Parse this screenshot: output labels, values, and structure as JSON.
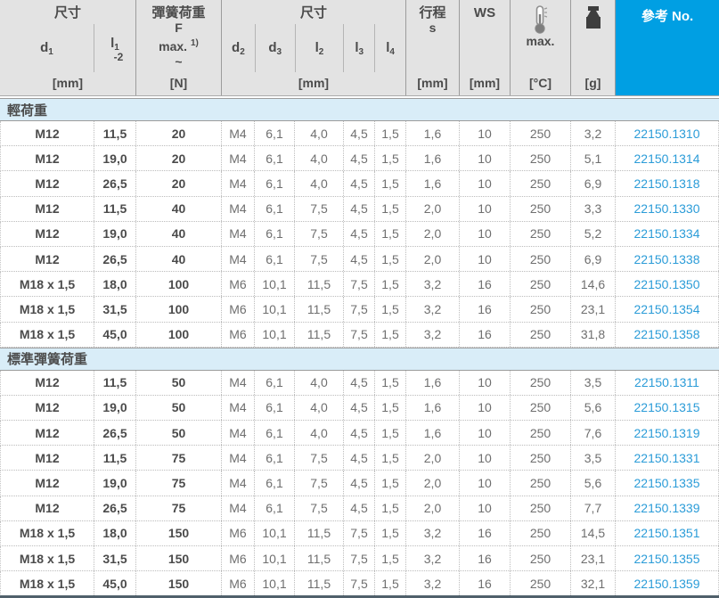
{
  "table": {
    "header": {
      "size1": {
        "title": "尺寸",
        "unit": "[mm]",
        "col_d1": {
          "base": "d",
          "sub": "1"
        },
        "col_l1": {
          "base": "l",
          "sub": "1",
          "line2": "-2"
        }
      },
      "load": {
        "title": "彈簧荷重",
        "symbol": "F",
        "max_label": "max.",
        "footnote": "1)",
        "approx": "~",
        "unit": "[N]"
      },
      "size2": {
        "title": "尺寸",
        "unit": "[mm]",
        "cols": [
          {
            "base": "d",
            "sub": "2"
          },
          {
            "base": "d",
            "sub": "3"
          },
          {
            "base": "l",
            "sub": "2"
          },
          {
            "base": "l",
            "sub": "3"
          },
          {
            "base": "l",
            "sub": "4"
          }
        ]
      },
      "stroke": {
        "line1": "行程",
        "line2": "s",
        "unit": "[mm]"
      },
      "ws": {
        "title": "WS",
        "unit": "[mm]"
      },
      "temp": {
        "icon": "thermometer-icon",
        "label": "max.",
        "unit": "[°C]"
      },
      "weight": {
        "icon": "weight-icon",
        "unit": "[g]"
      },
      "ref": {
        "title": "參考 No."
      }
    },
    "columns": [
      "d1",
      "l1-2",
      "F max",
      "d2",
      "d3",
      "l2",
      "l3",
      "l4",
      "s",
      "WS",
      "temp max",
      "weight g",
      "ref no"
    ],
    "sections": [
      {
        "title": "輕荷重",
        "rows": [
          [
            "M12",
            "11,5",
            "20",
            "M4",
            "6,1",
            "4,0",
            "4,5",
            "1,5",
            "1,6",
            "10",
            "250",
            "3,2",
            "22150.1310"
          ],
          [
            "M12",
            "19,0",
            "20",
            "M4",
            "6,1",
            "4,0",
            "4,5",
            "1,5",
            "1,6",
            "10",
            "250",
            "5,1",
            "22150.1314"
          ],
          [
            "M12",
            "26,5",
            "20",
            "M4",
            "6,1",
            "4,0",
            "4,5",
            "1,5",
            "1,6",
            "10",
            "250",
            "6,9",
            "22150.1318"
          ],
          [
            "M12",
            "11,5",
            "40",
            "M4",
            "6,1",
            "7,5",
            "4,5",
            "1,5",
            "2,0",
            "10",
            "250",
            "3,3",
            "22150.1330"
          ],
          [
            "M12",
            "19,0",
            "40",
            "M4",
            "6,1",
            "7,5",
            "4,5",
            "1,5",
            "2,0",
            "10",
            "250",
            "5,2",
            "22150.1334"
          ],
          [
            "M12",
            "26,5",
            "40",
            "M4",
            "6,1",
            "7,5",
            "4,5",
            "1,5",
            "2,0",
            "10",
            "250",
            "6,9",
            "22150.1338"
          ],
          [
            "M18 x 1,5",
            "18,0",
            "100",
            "M6",
            "10,1",
            "11,5",
            "7,5",
            "1,5",
            "3,2",
            "16",
            "250",
            "14,6",
            "22150.1350"
          ],
          [
            "M18 x 1,5",
            "31,5",
            "100",
            "M6",
            "10,1",
            "11,5",
            "7,5",
            "1,5",
            "3,2",
            "16",
            "250",
            "23,1",
            "22150.1354"
          ],
          [
            "M18 x 1,5",
            "45,0",
            "100",
            "M6",
            "10,1",
            "11,5",
            "7,5",
            "1,5",
            "3,2",
            "16",
            "250",
            "31,8",
            "22150.1358"
          ]
        ]
      },
      {
        "title": "標準彈簧荷重",
        "rows": [
          [
            "M12",
            "11,5",
            "50",
            "M4",
            "6,1",
            "4,0",
            "4,5",
            "1,5",
            "1,6",
            "10",
            "250",
            "3,5",
            "22150.1311"
          ],
          [
            "M12",
            "19,0",
            "50",
            "M4",
            "6,1",
            "4,0",
            "4,5",
            "1,5",
            "1,6",
            "10",
            "250",
            "5,6",
            "22150.1315"
          ],
          [
            "M12",
            "26,5",
            "50",
            "M4",
            "6,1",
            "4,0",
            "4,5",
            "1,5",
            "1,6",
            "10",
            "250",
            "7,6",
            "22150.1319"
          ],
          [
            "M12",
            "11,5",
            "75",
            "M4",
            "6,1",
            "7,5",
            "4,5",
            "1,5",
            "2,0",
            "10",
            "250",
            "3,5",
            "22150.1331"
          ],
          [
            "M12",
            "19,0",
            "75",
            "M4",
            "6,1",
            "7,5",
            "4,5",
            "1,5",
            "2,0",
            "10",
            "250",
            "5,6",
            "22150.1335"
          ],
          [
            "M12",
            "26,5",
            "75",
            "M4",
            "6,1",
            "7,5",
            "4,5",
            "1,5",
            "2,0",
            "10",
            "250",
            "7,7",
            "22150.1339"
          ],
          [
            "M18 x 1,5",
            "18,0",
            "150",
            "M6",
            "10,1",
            "11,5",
            "7,5",
            "1,5",
            "3,2",
            "16",
            "250",
            "14,5",
            "22150.1351"
          ],
          [
            "M18 x 1,5",
            "31,5",
            "150",
            "M6",
            "10,1",
            "11,5",
            "7,5",
            "1,5",
            "3,2",
            "16",
            "250",
            "23,1",
            "22150.1355"
          ],
          [
            "M18 x 1,5",
            "45,0",
            "150",
            "M6",
            "10,1",
            "11,5",
            "7,5",
            "1,5",
            "3,2",
            "16",
            "250",
            "32,1",
            "22150.1359"
          ]
        ]
      }
    ]
  },
  "colors": {
    "accent_blue": "#009fe3",
    "section_blue": "#d9edf8",
    "link_blue": "#2b9cd8",
    "header_gray": "#e3e3e3"
  }
}
